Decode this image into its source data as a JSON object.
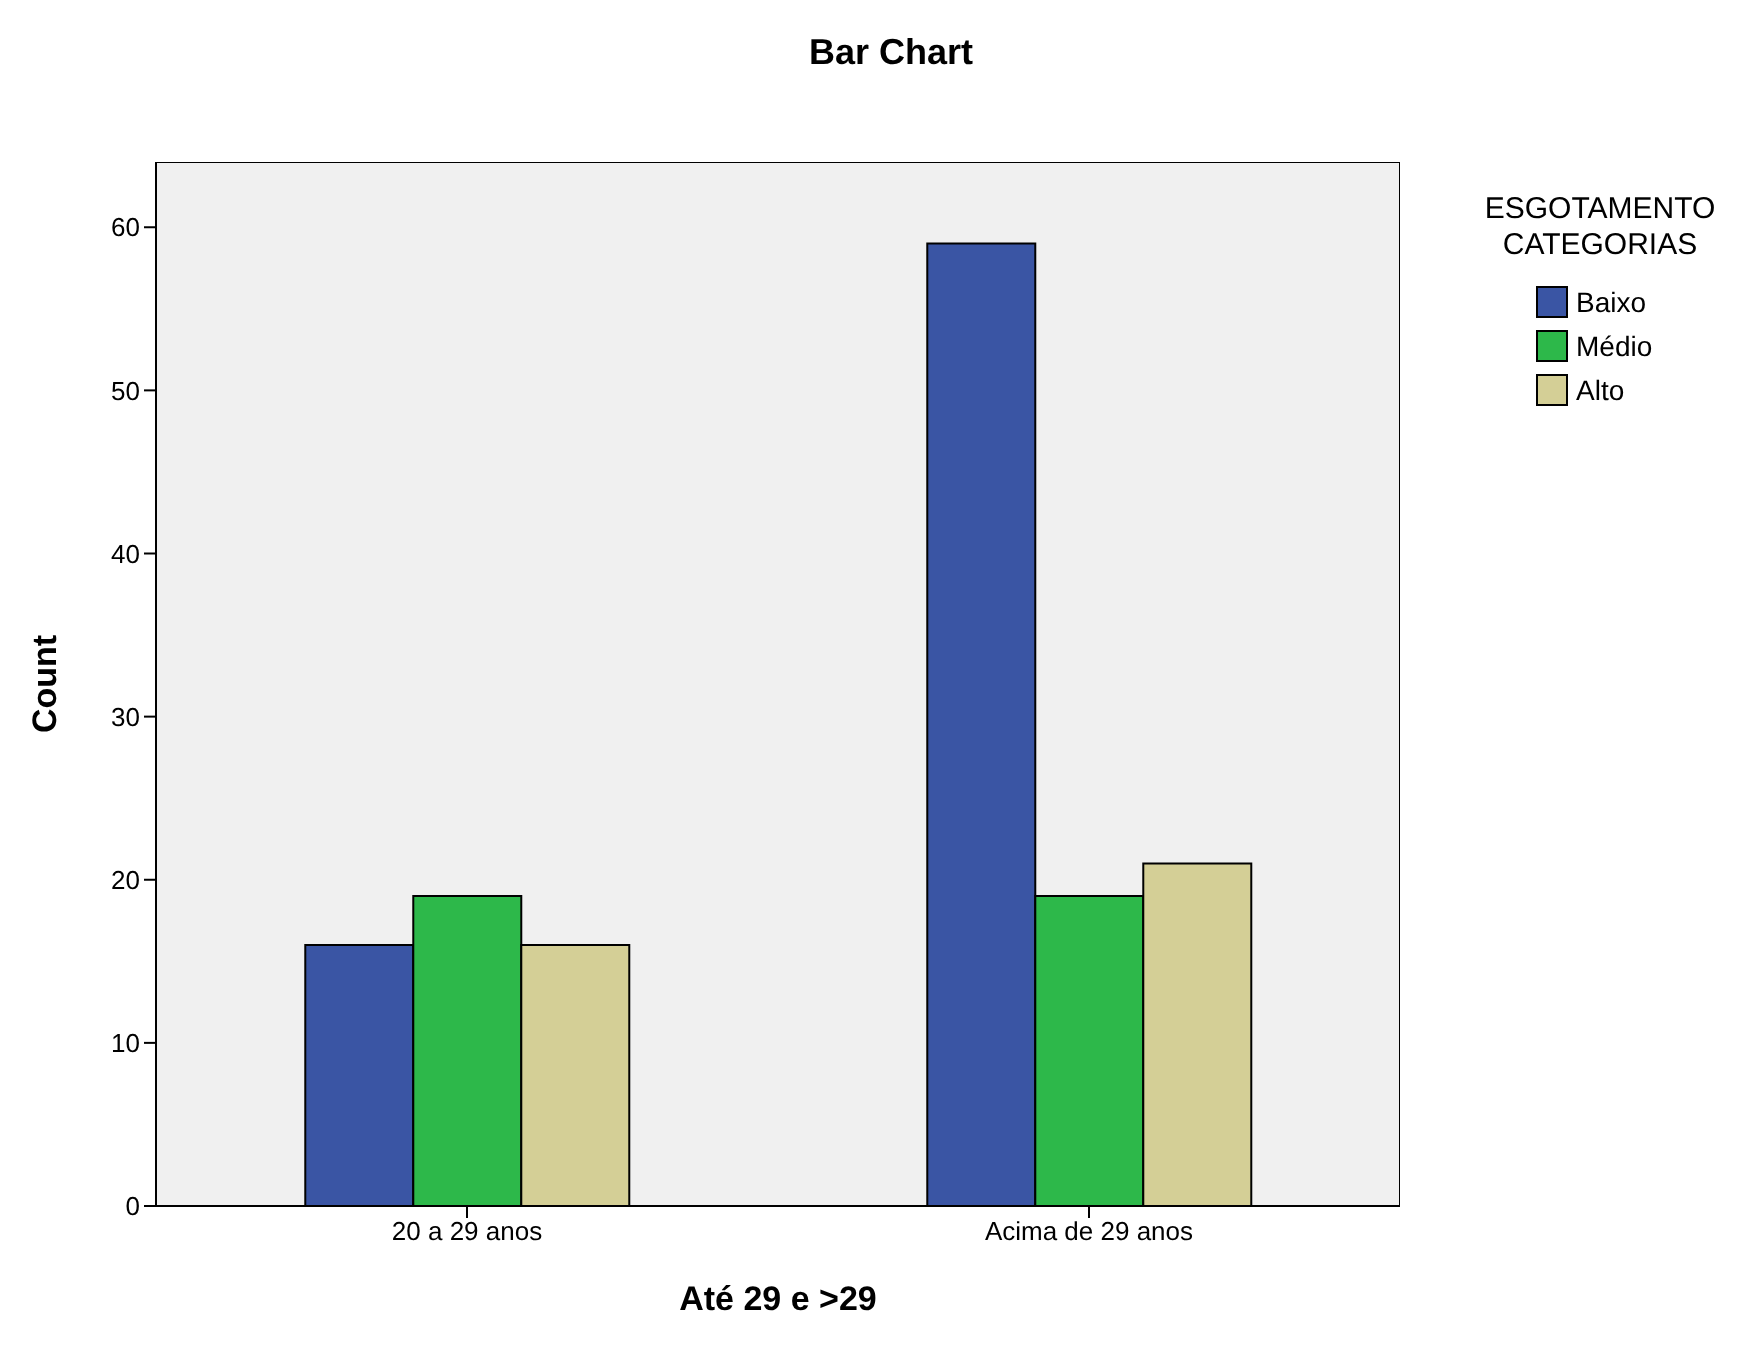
{
  "chart_data": {
    "type": "bar",
    "title": "Bar Chart",
    "xlabel": "Até 29 e >29",
    "ylabel": "Count",
    "legend_title": "ESGOTAMENTO CATEGORIAS",
    "categories": [
      "20 a 29 anos",
      "Acima de 29 anos"
    ],
    "series": [
      {
        "name": "Baixo",
        "color": "#3a55a4",
        "values": [
          16,
          59
        ]
      },
      {
        "name": "Médio",
        "color": "#2db84a",
        "values": [
          19,
          19
        ]
      },
      {
        "name": "Alto",
        "color": "#d4cf96",
        "values": [
          16,
          21
        ]
      }
    ],
    "ylim": [
      0,
      64
    ],
    "yticks": [
      0,
      10,
      20,
      30,
      40,
      50,
      60
    ],
    "grid": false,
    "legend": "top right"
  }
}
